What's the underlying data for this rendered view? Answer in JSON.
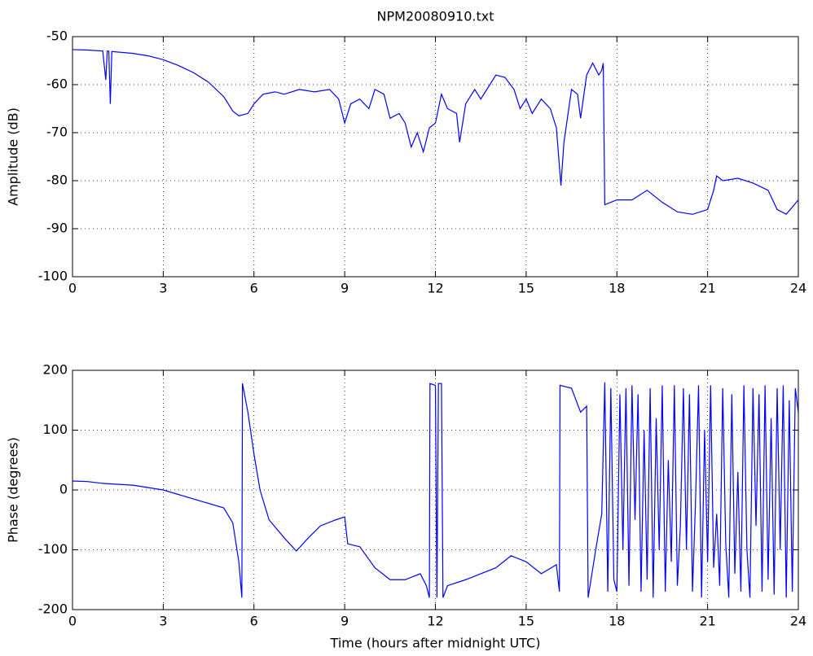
{
  "chart_data": [
    {
      "type": "line",
      "title": "NPM20080910.txt",
      "ylabel": "Amplitude (dB)",
      "color": "#0000ff",
      "grid": true,
      "xlim": [
        0,
        24
      ],
      "xticks": [
        0,
        3,
        6,
        9,
        12,
        15,
        18,
        21,
        24
      ],
      "ylim": [
        -100,
        -50
      ],
      "yticks": [
        -100,
        -90,
        -80,
        -70,
        -60,
        -50
      ],
      "x": [
        0,
        0.5,
        1.0,
        1.1,
        1.15,
        1.2,
        1.25,
        1.3,
        2,
        2.5,
        3,
        3.5,
        4,
        4.5,
        5,
        5.3,
        5.5,
        5.8,
        6,
        6.3,
        6.7,
        7,
        7.5,
        8,
        8.5,
        8.8,
        9,
        9.2,
        9.5,
        9.8,
        10,
        10.3,
        10.5,
        10.8,
        11,
        11.2,
        11.4,
        11.6,
        11.8,
        12,
        12.2,
        12.4,
        12.7,
        12.8,
        13,
        13.3,
        13.5,
        13.8,
        14,
        14.3,
        14.6,
        14.8,
        15,
        15.2,
        15.5,
        15.8,
        16,
        16.1,
        16.15,
        16.25,
        16.5,
        16.7,
        16.8,
        17,
        17.2,
        17.4,
        17.5,
        17.55,
        17.6,
        18,
        18.5,
        19,
        19.5,
        20,
        20.5,
        21,
        21.2,
        21.3,
        21.5,
        22,
        22.5,
        23,
        23.3,
        23.6,
        24
      ],
      "values": [
        -52.7,
        -52.8,
        -53,
        -59,
        -53,
        -53,
        -64,
        -53.1,
        -53.5,
        -54,
        -54.8,
        -56,
        -57.5,
        -59.5,
        -62.5,
        -65.5,
        -66.5,
        -66,
        -64,
        -62,
        -61.5,
        -62,
        -61,
        -61.5,
        -61,
        -63,
        -68,
        -64,
        -63,
        -65,
        -61,
        -62,
        -67,
        -66,
        -68,
        -73,
        -70,
        -74,
        -69,
        -68,
        -62,
        -65,
        -66,
        -72,
        -64,
        -61,
        -63,
        -60,
        -58,
        -58.5,
        -61,
        -65,
        -63,
        -66,
        -63,
        -65,
        -69,
        -77,
        -81,
        -72,
        -61,
        -62,
        -67,
        -58,
        -55.5,
        -58,
        -57,
        -55.5,
        -85,
        -84,
        -84,
        -82,
        -84.5,
        -86.5,
        -87,
        -86,
        -82,
        -79,
        -80,
        -79.5,
        -80.5,
        -82,
        -86,
        -87,
        -84
      ]
    },
    {
      "type": "line",
      "ylabel": "Phase (degrees)",
      "xlabel": "Time (hours after midnight UTC)",
      "color": "#0000ff",
      "grid": true,
      "xlim": [
        0,
        24
      ],
      "xticks": [
        0,
        3,
        6,
        9,
        12,
        15,
        18,
        21,
        24
      ],
      "ylim": [
        -200,
        200
      ],
      "yticks": [
        -200,
        -100,
        0,
        100,
        200
      ],
      "x": [
        0,
        0.5,
        1,
        2,
        3,
        4,
        5,
        5.3,
        5.5,
        5.6,
        5.62,
        5.8,
        6,
        6.2,
        6.5,
        7,
        7.4,
        7.8,
        8.2,
        8.7,
        9,
        9.1,
        9.5,
        10,
        10.5,
        11,
        11.5,
        11.7,
        11.8,
        11.82,
        12,
        12.05,
        12.1,
        12.2,
        12.25,
        12.4,
        13,
        13.5,
        14,
        14.5,
        15,
        15.5,
        16,
        16.1,
        16.12,
        16.5,
        16.8,
        17,
        17.05,
        17.3,
        17.5,
        17.6,
        17.7,
        17.8,
        17.9,
        18.0,
        18.1,
        18.2,
        18.3,
        18.4,
        18.5,
        18.6,
        18.7,
        18.8,
        18.9,
        19.0,
        19.1,
        19.2,
        19.3,
        19.4,
        19.5,
        19.6,
        19.7,
        19.8,
        19.9,
        20.0,
        20.1,
        20.2,
        20.3,
        20.4,
        20.5,
        20.6,
        20.7,
        20.8,
        20.9,
        21.0,
        21.1,
        21.2,
        21.3,
        21.4,
        21.5,
        21.6,
        21.7,
        21.8,
        21.9,
        22.0,
        22.1,
        22.2,
        22.3,
        22.4,
        22.5,
        22.6,
        22.7,
        22.8,
        22.9,
        23.0,
        23.1,
        23.2,
        23.3,
        23.4,
        23.5,
        23.6,
        23.7,
        23.8,
        23.9,
        24.0
      ],
      "values": [
        15,
        14,
        11,
        8,
        0,
        -15,
        -30,
        -55,
        -120,
        -180,
        178,
        130,
        60,
        0,
        -50,
        -80,
        -102,
        -80,
        -60,
        -50,
        -45,
        -90,
        -95,
        -130,
        -150,
        -150,
        -140,
        -160,
        -180,
        178,
        175,
        -180,
        178,
        178,
        -180,
        -160,
        -150,
        -140,
        -130,
        -110,
        -120,
        -140,
        -125,
        -170,
        175,
        170,
        130,
        140,
        -180,
        -100,
        -40,
        180,
        -170,
        170,
        -150,
        -170,
        160,
        -100,
        170,
        -160,
        175,
        -50,
        160,
        -170,
        100,
        -150,
        170,
        -180,
        120,
        -100,
        175,
        -170,
        50,
        -120,
        175,
        -160,
        -60,
        170,
        -100,
        160,
        -170,
        -20,
        175,
        -180,
        100,
        -120,
        175,
        -130,
        -40,
        -160,
        170,
        -90,
        -180,
        160,
        -140,
        30,
        -170,
        175,
        -100,
        -180,
        170,
        -60,
        160,
        -170,
        175,
        -150,
        120,
        -175,
        170,
        -100,
        175,
        -180,
        150,
        -170,
        170,
        130
      ]
    }
  ]
}
